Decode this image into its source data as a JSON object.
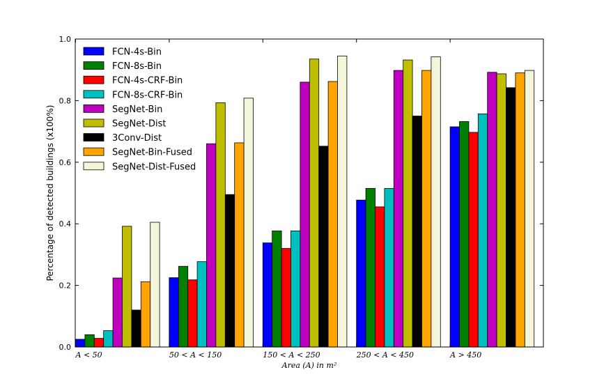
{
  "chart_data": {
    "type": "bar",
    "title": "",
    "xlabel": "Area (A) in m²",
    "ylabel": "Percentage of detected buildings (x100%)",
    "ylim": [
      0,
      1.0
    ],
    "yticks": [
      "0.0",
      "0.2",
      "0.4",
      "0.6",
      "0.8",
      "1.0"
    ],
    "categories": [
      "A < 50",
      "50 < A < 150",
      "150 < A < 250",
      "250 < A < 450",
      "A > 450"
    ],
    "legend_position": "top-left",
    "series": [
      {
        "name": "FCN-4s-Bin",
        "color": "#0000ff",
        "values": [
          0.025,
          0.225,
          0.338,
          0.477,
          0.715
        ]
      },
      {
        "name": "FCN-8s-Bin",
        "color": "#008000",
        "values": [
          0.04,
          0.262,
          0.377,
          0.515,
          0.732
        ]
      },
      {
        "name": "FCN-4s-CRF-Bin",
        "color": "#ff0000",
        "values": [
          0.028,
          0.218,
          0.32,
          0.455,
          0.697
        ]
      },
      {
        "name": "FCN-8s-CRF-Bin",
        "color": "#00bfbf",
        "values": [
          0.053,
          0.277,
          0.377,
          0.515,
          0.757
        ]
      },
      {
        "name": "SegNet-Bin",
        "color": "#bf00bf",
        "values": [
          0.224,
          0.66,
          0.86,
          0.898,
          0.892
        ]
      },
      {
        "name": "SegNet-Dist",
        "color": "#bfbf00",
        "values": [
          0.392,
          0.793,
          0.935,
          0.932,
          0.887
        ]
      },
      {
        "name": "3Conv-Dist",
        "color": "#000000",
        "values": [
          0.12,
          0.495,
          0.652,
          0.75,
          0.842
        ]
      },
      {
        "name": "SegNet-Bin-Fused",
        "color": "#ffa500",
        "values": [
          0.212,
          0.663,
          0.862,
          0.898,
          0.89
        ]
      },
      {
        "name": "SegNet-Dist-Fused",
        "color": "#f5f5dc",
        "values": [
          0.405,
          0.808,
          0.945,
          0.942,
          0.898
        ]
      }
    ]
  }
}
